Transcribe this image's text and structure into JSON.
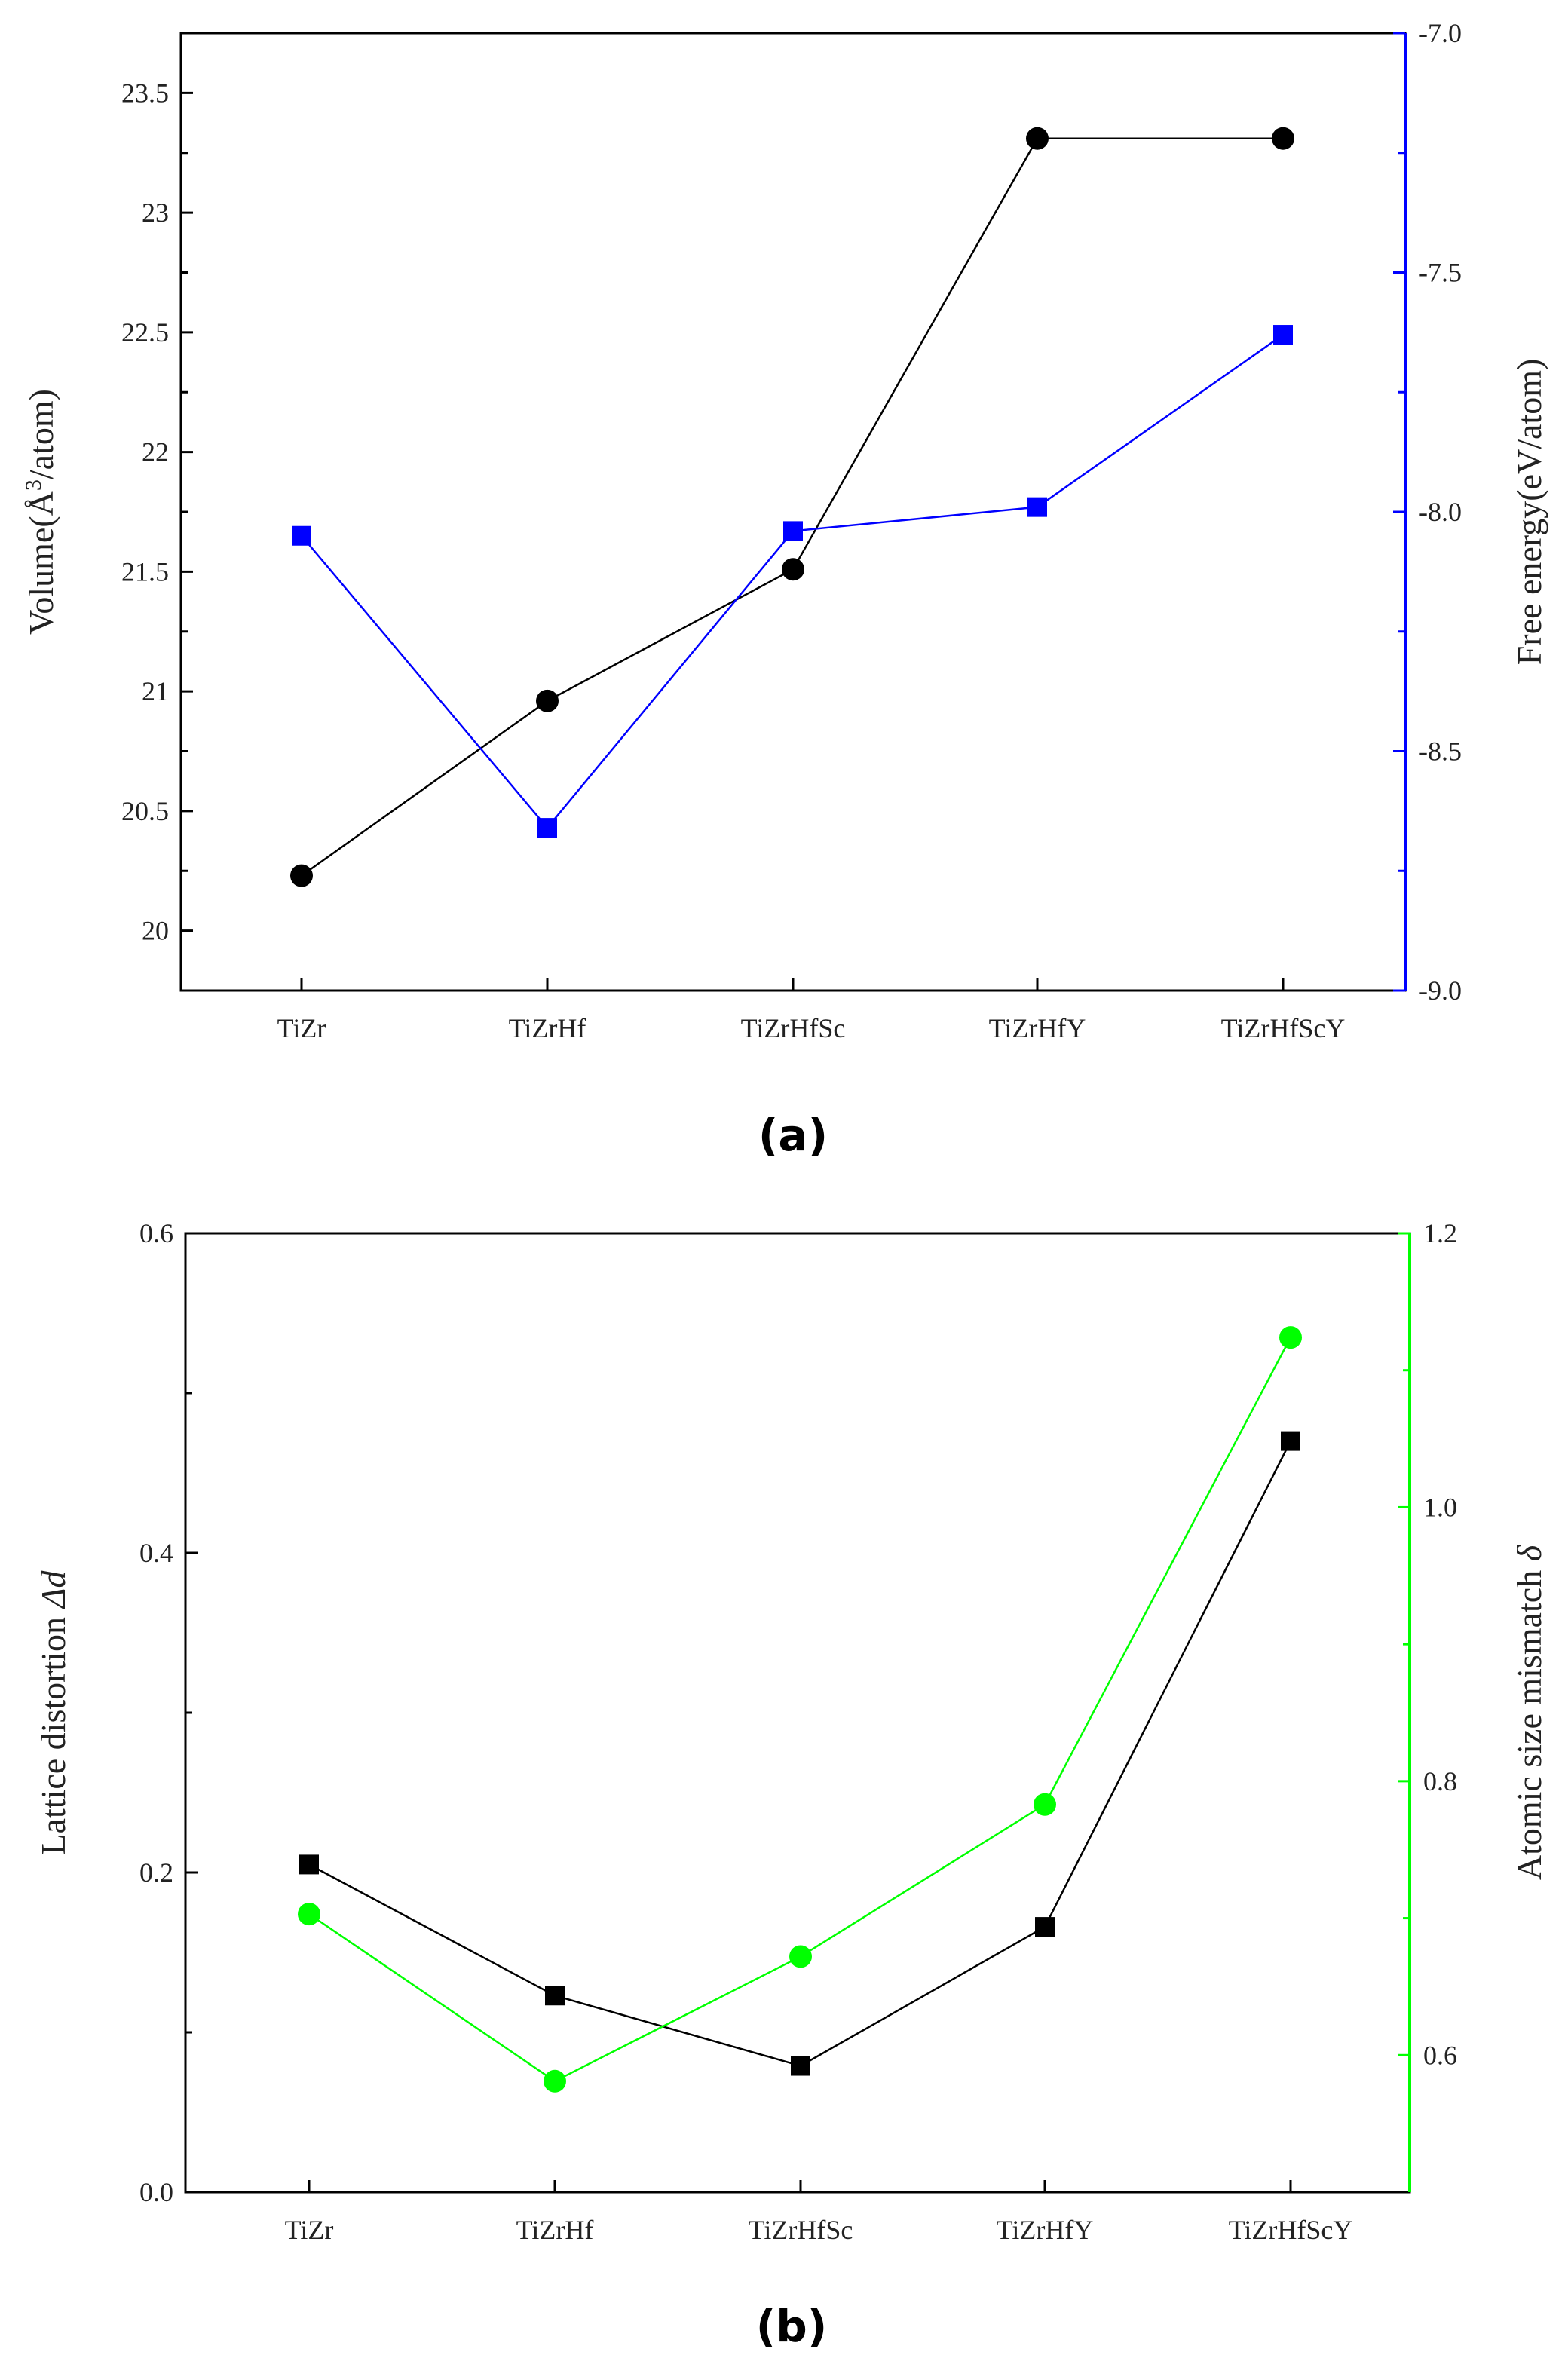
{
  "chart_data": [
    {
      "type": "line",
      "panel": "(a)",
      "categories": [
        "TiZr",
        "TiZrHf",
        "TiZrHfSc",
        "TiZrHfY",
        "TiZrHfScY"
      ],
      "series": [
        {
          "name": "Volume",
          "axis": "left",
          "marker": "circle",
          "color": "#000000",
          "values": [
            20.23,
            20.96,
            21.51,
            23.31,
            23.31
          ]
        },
        {
          "name": "Free energy",
          "axis": "right",
          "marker": "square",
          "color": "#0000ff",
          "values": [
            -8.05,
            -8.66,
            -8.04,
            -7.99,
            -7.63
          ]
        }
      ],
      "ylabel_left": "Volume(Å³/atom)",
      "ylabel_right": "Free energy(eV/atom)",
      "ylim_left": [
        19.75,
        23.75
      ],
      "ylim_right": [
        -9.0,
        -7.0
      ],
      "yticks_left": [
        20.0,
        20.5,
        21.0,
        21.5,
        22.0,
        22.5,
        23.0,
        23.5
      ],
      "yticks_right": [
        -9.0,
        -8.5,
        -8.0,
        -7.5,
        -7.0
      ],
      "right_axis_color": "#0000ff"
    },
    {
      "type": "line",
      "panel": "(b)",
      "categories": [
        "TiZr",
        "TiZrHf",
        "TiZrHfSc",
        "TiZrHfY",
        "TiZrHfScY"
      ],
      "series": [
        {
          "name": "Lattice distortion",
          "axis": "left",
          "marker": "square",
          "color": "#000000",
          "values": [
            0.205,
            0.123,
            0.079,
            0.166,
            0.47
          ]
        },
        {
          "name": "Atomic size mismatch",
          "axis": "right",
          "marker": "circle",
          "color": "#00ff00",
          "values": [
            0.703,
            0.581,
            0.672,
            0.783,
            1.124
          ]
        }
      ],
      "ylabel_left": "Lattice distortion Δd",
      "ylabel_right": "Atomic size mismatch δ",
      "ylim_left": [
        0.0,
        0.6
      ],
      "ylim_right": [
        0.5,
        1.2
      ],
      "yticks_left": [
        "0.0",
        "0.2",
        "0.4",
        "0.6"
      ],
      "yticks_right": [
        "0.6",
        "0.8",
        "1.0",
        "1.2"
      ],
      "right_axis_color": "#00ff00"
    }
  ],
  "labels": {
    "a": "(a)",
    "b": "(b)",
    "a_left_prefix": "Volume(Å",
    "a_left_sup": "3",
    "a_left_suffix": "/atom)",
    "b_left_prefix": "Lattice distortion ",
    "b_left_var": "Δd",
    "b_right_prefix": "Atomic size mismatch ",
    "b_right_var": "δ"
  }
}
